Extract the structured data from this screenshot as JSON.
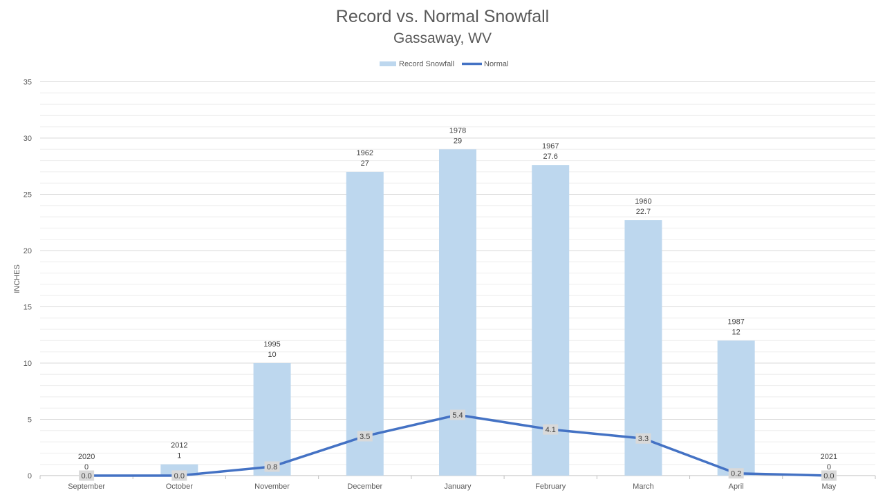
{
  "chart_data": {
    "type": "bar",
    "title": "Record vs. Normal Snowfall",
    "subtitle": "Gassaway, WV",
    "xlabel": "",
    "ylabel": "INCHES",
    "ylim": [
      0,
      35
    ],
    "y_major_step": 5,
    "y_minor_step": 1,
    "grid": true,
    "legend_position": "top",
    "categories": [
      "September",
      "October",
      "November",
      "December",
      "January",
      "February",
      "March",
      "April",
      "May"
    ],
    "series": [
      {
        "name": "Record Snowfall",
        "type": "bar",
        "color": "#bdd7ee",
        "values": [
          0,
          1,
          10,
          27,
          29,
          27.6,
          22.7,
          12,
          0
        ],
        "years": [
          "2020",
          "2012",
          "1995",
          "1962",
          "1978",
          "1967",
          "1960",
          "1987",
          "2021"
        ]
      },
      {
        "name": "Normal",
        "type": "line",
        "color": "#4472c4",
        "values": [
          0.0,
          0.0,
          0.8,
          3.5,
          5.4,
          4.1,
          3.3,
          0.2,
          0.0
        ],
        "labels": [
          "0.0",
          "0.0",
          "0.8",
          "3.5",
          "5.4",
          "4.1",
          "3.3",
          "0.2",
          "0.0"
        ]
      }
    ]
  }
}
